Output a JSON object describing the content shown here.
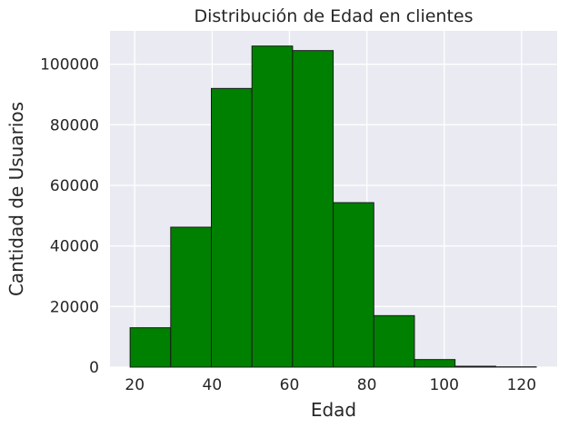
{
  "chart_data": {
    "type": "bar",
    "title": "Distribución de Edad en clientes",
    "xlabel": "Edad",
    "ylabel": "Cantidad de Usuarios",
    "bin_edges": [
      18.8,
      29.3,
      39.8,
      50.3,
      60.8,
      71.3,
      81.8,
      92.3,
      102.8,
      113.3,
      123.8
    ],
    "values": [
      13000,
      46200,
      92000,
      106000,
      104500,
      54300,
      17000,
      2500,
      300,
      100
    ],
    "xlim": [
      13.6,
      129.2
    ],
    "ylim": [
      0,
      111000
    ],
    "xticks": [
      20,
      40,
      60,
      80,
      100,
      120
    ],
    "yticks": [
      0,
      20000,
      40000,
      60000,
      80000,
      100000
    ],
    "grid": true,
    "bar_color": "#008000",
    "edge_color": "#1a1a1a",
    "background_color": "#EAEAF2",
    "grid_color": "#ffffff"
  }
}
